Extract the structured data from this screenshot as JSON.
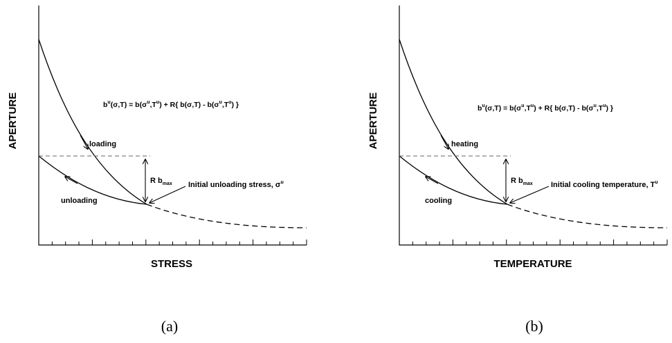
{
  "panels": [
    {
      "id": "a",
      "ylabel": "APERTURE",
      "xlabel": "STRESS",
      "formula": {
        "lhs": "b",
        "lhs_sup": "u",
        "part1": "(σ,T) = b(σ",
        "sup1": "u",
        "part2": ",T",
        "sup2": "u",
        "part3": ") + R{ b(σ,T) - b(σ",
        "sup3": "u",
        "part4": ",T",
        "sup4": "u",
        "part5": ") }"
      },
      "forward_label": "loading",
      "reverse_label": "unloading",
      "rb_label": "R b",
      "rb_sub": "max",
      "initial_label": "Initial unloading stress, σ",
      "initial_sup": "u",
      "caption": "(a)"
    },
    {
      "id": "b",
      "ylabel": "APERTURE",
      "xlabel": "TEMPERATURE",
      "formula": {
        "lhs": "b",
        "lhs_sup": "u",
        "part1": "(σ,T) = b(σ",
        "sup1": "u",
        "part2": ",T",
        "sup2": "u",
        "part3": ") + R{ b(σ,T) - b(σ",
        "sup3": "u",
        "part4": ",T",
        "sup4": "u",
        "part5": ") }"
      },
      "forward_label": "heating",
      "reverse_label": "cooling",
      "rb_label": "R b",
      "rb_sub": "max",
      "initial_label": "Initial cooling temperature, T",
      "initial_sup": "u",
      "caption": "(b)"
    }
  ]
}
